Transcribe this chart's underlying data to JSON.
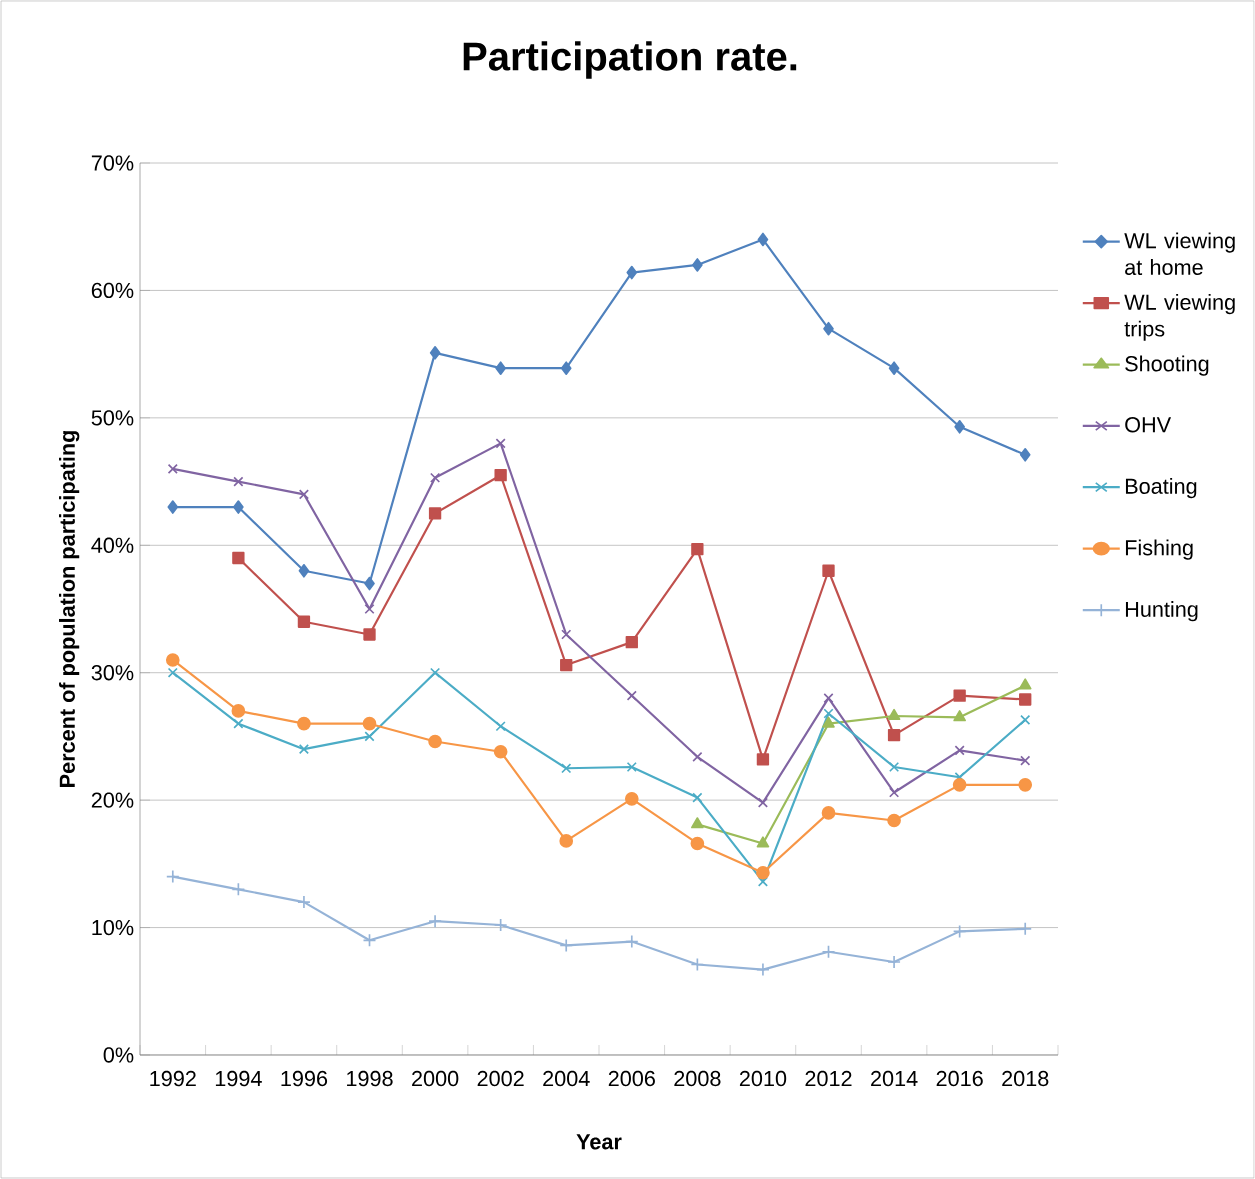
{
  "chart_data": {
    "type": "line",
    "title": "Participation rate.",
    "xlabel": "Year",
    "ylabel": "Percent of population participating",
    "categories": [
      "1992",
      "1994",
      "1996",
      "1998",
      "2000",
      "2002",
      "2004",
      "2006",
      "2008",
      "2010",
      "2012",
      "2014",
      "2016",
      "2018"
    ],
    "series": [
      {
        "name": "WL viewing at home",
        "color": "#4f81bd",
        "marker": "diamond",
        "values": [
          43,
          43,
          38,
          37,
          55.1,
          53.9,
          53.9,
          61.4,
          62,
          64,
          57,
          53.9,
          49.3,
          47.1
        ]
      },
      {
        "name": "WL viewing trips",
        "color": "#c0504d",
        "marker": "square",
        "values": [
          null,
          39,
          34,
          33,
          42.5,
          45.5,
          30.6,
          32.4,
          39.7,
          23.2,
          38,
          25.1,
          28.2,
          27.9
        ]
      },
      {
        "name": "Shooting",
        "color": "#9bbb59",
        "marker": "triangle",
        "values": [
          null,
          null,
          null,
          null,
          null,
          null,
          null,
          null,
          18.1,
          16.6,
          26,
          26.6,
          26.5,
          29
        ]
      },
      {
        "name": "OHV",
        "color": "#8064a2",
        "marker": "cross",
        "values": [
          46,
          45,
          44,
          35,
          45.3,
          48,
          33,
          28.2,
          23.4,
          19.8,
          28,
          20.6,
          23.9,
          23.1
        ]
      },
      {
        "name": "Boating",
        "color": "#4bacc6",
        "marker": "cross",
        "values": [
          30,
          26,
          24,
          25,
          30,
          25.8,
          22.5,
          22.6,
          20.2,
          13.6,
          26.8,
          22.6,
          21.8,
          26.3
        ]
      },
      {
        "name": "Fishing",
        "color": "#f79646",
        "marker": "circle",
        "values": [
          31,
          27,
          26,
          26,
          24.6,
          23.8,
          16.8,
          20.1,
          16.6,
          14.3,
          19,
          18.4,
          21.2,
          21.2
        ]
      },
      {
        "name": "Hunting",
        "color": "#95b3d7",
        "marker": "plus",
        "values": [
          14,
          13,
          12,
          9,
          10.5,
          10.2,
          8.6,
          8.9,
          7.1,
          6.7,
          8.1,
          7.3,
          9.7,
          9.9
        ]
      }
    ],
    "ylim": [
      0,
      70
    ],
    "yticks": [
      {
        "value": 0,
        "label": "0%"
      },
      {
        "value": 10,
        "label": "10%"
      },
      {
        "value": 20,
        "label": "20%"
      },
      {
        "value": 30,
        "label": "30%"
      },
      {
        "value": 40,
        "label": "40%"
      },
      {
        "value": 50,
        "label": "50%"
      },
      {
        "value": 60,
        "label": "60%"
      },
      {
        "value": 70,
        "label": "70%"
      }
    ],
    "grid": "y",
    "legend": "right"
  }
}
